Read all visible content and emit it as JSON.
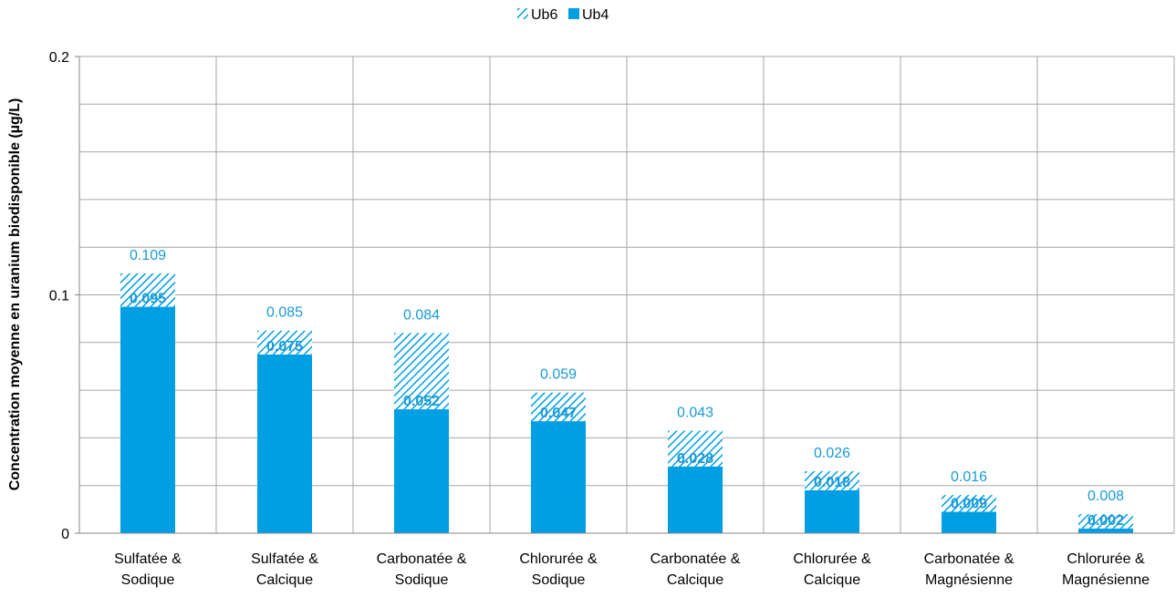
{
  "chart_data": {
    "type": "bar",
    "stacked": true,
    "categories": [
      [
        "Sulfatée &",
        "Sodique"
      ],
      [
        "Sulfatée &",
        "Calcique"
      ],
      [
        "Carbonatée &",
        "Sodique"
      ],
      [
        "Chlorurée &",
        "Sodique"
      ],
      [
        "Carbonatée &",
        "Calcique"
      ],
      [
        "Chlorurée &",
        "Calcique"
      ],
      [
        "Carbonatée &",
        "Magnésienne"
      ],
      [
        "Chlorurée &",
        "Magnésienne"
      ]
    ],
    "series": [
      {
        "name": "Ub4",
        "values": [
          0.095,
          0.075,
          0.052,
          0.047,
          0.028,
          0.018,
          0.009,
          0.002
        ],
        "color": "#009fe3",
        "pattern": "solid",
        "labels": [
          "0.095",
          "0.075",
          "0.052",
          "0.047",
          "0.028",
          "0.018",
          "0.009",
          "0.002"
        ]
      },
      {
        "name": "Ub6",
        "values": [
          0.014,
          0.01,
          0.032,
          0.012,
          0.015,
          0.008,
          0.007,
          0.006
        ],
        "color": "#009fe3",
        "pattern": "hatched",
        "total_labels": [
          "0.109",
          "0.085",
          "0.084",
          "0.059",
          "0.043",
          "0.026",
          "0.016",
          "0.008"
        ]
      }
    ],
    "legend": {
      "placement": "top-center",
      "order": [
        "Ub6",
        "Ub4"
      ]
    },
    "ylabel": "Concentration moyenne en uranium biodisponible (µg/L)",
    "xlabel": "",
    "ylim": [
      0,
      0.2
    ],
    "y_ticks": [
      "0",
      "0.1",
      "0.2"
    ],
    "grid": true
  }
}
